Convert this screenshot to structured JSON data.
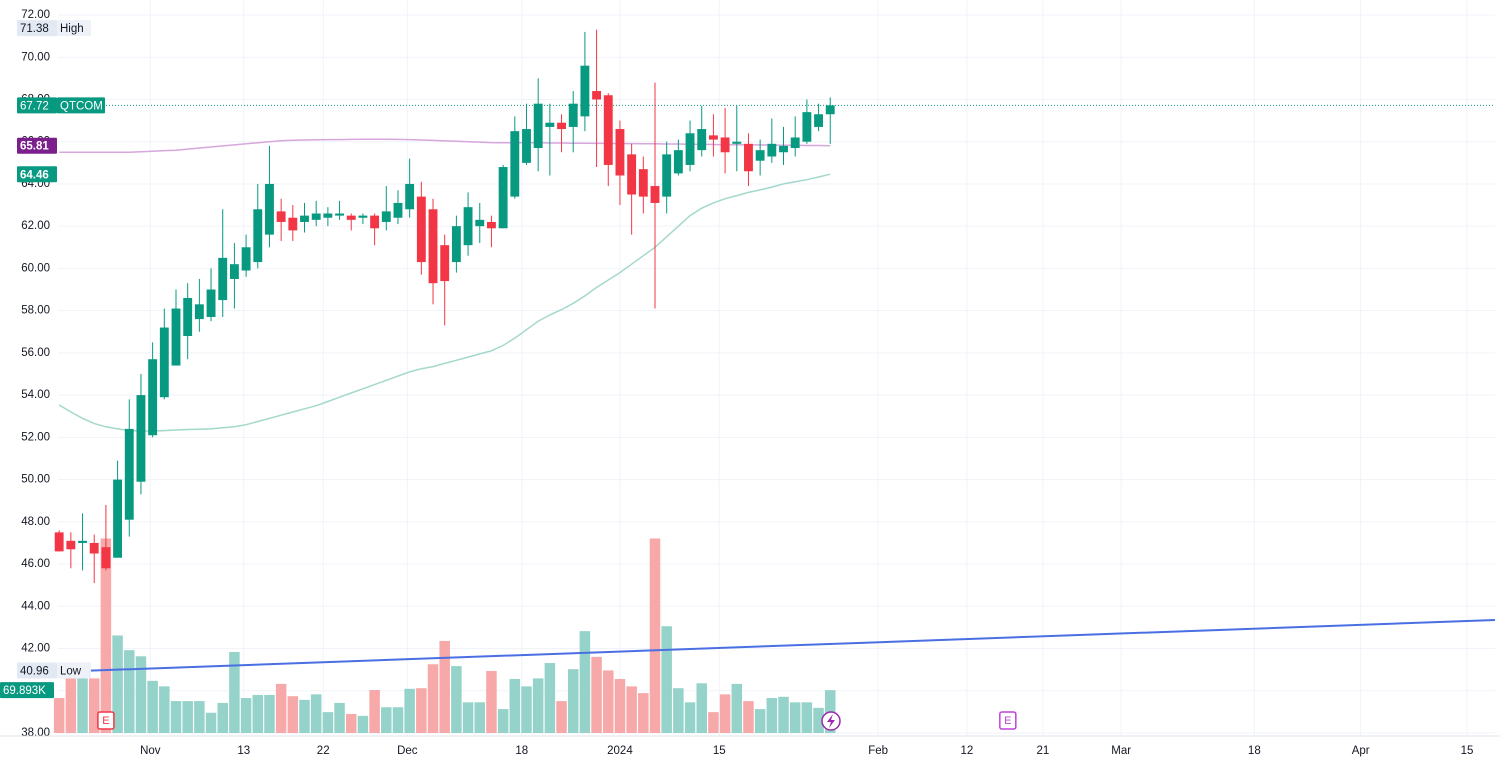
{
  "chart_data": {
    "type": "candlestick",
    "symbol": "QTCOM",
    "up_color": "#089981",
    "down_color": "#f23645",
    "x": [
      0,
      1,
      2,
      3,
      4,
      5,
      6,
      7,
      8,
      9,
      10,
      11,
      12,
      13,
      14,
      15,
      16,
      17,
      18,
      19,
      20,
      21,
      22,
      23,
      24,
      25,
      26,
      27,
      28,
      29,
      30,
      31,
      32,
      33,
      34,
      35,
      36,
      37,
      38,
      39,
      40,
      41,
      42,
      43,
      44,
      45,
      46,
      47,
      48,
      49,
      50,
      51,
      52,
      53,
      54,
      55,
      56,
      57,
      58,
      59,
      60,
      61,
      62,
      63,
      64,
      65,
      66
    ],
    "open": [
      47.5,
      47.1,
      47.0,
      47.0,
      46.8,
      46.3,
      48.1,
      49.9,
      52.1,
      53.9,
      55.4,
      56.8,
      57.6,
      57.7,
      58.5,
      59.5,
      59.9,
      60.3,
      61.6,
      62.7,
      62.4,
      62.2,
      62.3,
      62.4,
      62.5,
      62.5,
      62.4,
      62.5,
      62.2,
      62.4,
      62.8,
      63.4,
      62.8,
      61.1,
      60.3,
      61.1,
      62.0,
      62.2,
      61.9,
      63.4,
      65.0,
      65.7,
      66.7,
      66.9,
      66.7,
      67.2,
      68.4,
      68.2,
      66.6,
      65.4,
      64.7,
      63.9,
      63.4,
      64.5,
      64.9,
      65.6,
      66.3,
      66.2,
      65.9,
      65.9,
      65.1,
      65.3,
      65.5,
      65.7,
      66.0,
      66.7,
      67.3
    ],
    "high": [
      47.6,
      47.5,
      48.4,
      47.4,
      48.8,
      50.9,
      53.8,
      55.0,
      56.5,
      58.1,
      59.0,
      59.3,
      59.5,
      60.0,
      62.8,
      61.2,
      61.6,
      64.0,
      65.8,
      63.3,
      63.0,
      63.1,
      63.2,
      62.9,
      63.2,
      62.6,
      62.6,
      62.6,
      63.9,
      63.7,
      65.2,
      64.1,
      63.3,
      61.6,
      62.5,
      63.6,
      63.1,
      62.5,
      64.9,
      67.2,
      67.8,
      69.0,
      67.8,
      67.3,
      68.4,
      71.2,
      71.3,
      68.3,
      67.0,
      65.9,
      65.3,
      68.8,
      66.0,
      66.1,
      67.0,
      67.7,
      67.3,
      67.6,
      67.7,
      66.4,
      66.1,
      67.1,
      66.7,
      67.2,
      68.0,
      67.8,
      68.1
    ],
    "low": [
      46.6,
      45.8,
      45.7,
      45.1,
      45.7,
      46.3,
      47.3,
      49.3,
      52.0,
      53.8,
      55.4,
      55.7,
      57.0,
      57.5,
      57.7,
      58.1,
      59.6,
      60.0,
      61.0,
      61.3,
      61.3,
      61.7,
      62.0,
      62.0,
      62.3,
      61.8,
      62.1,
      61.1,
      61.8,
      62.1,
      62.4,
      59.7,
      58.3,
      57.3,
      59.8,
      60.6,
      61.2,
      61.0,
      61.9,
      63.3,
      64.9,
      64.6,
      64.4,
      65.5,
      65.5,
      66.5,
      64.8,
      63.9,
      63.0,
      61.6,
      62.6,
      58.1,
      62.6,
      64.4,
      64.6,
      65.3,
      65.3,
      64.5,
      64.6,
      63.9,
      64.4,
      65.0,
      64.9,
      65.3,
      65.9,
      66.5,
      65.9
    ],
    "close": [
      46.6,
      46.7,
      47.1,
      46.5,
      45.8,
      50.0,
      52.4,
      54.0,
      55.7,
      57.2,
      58.1,
      58.6,
      58.3,
      59.0,
      60.5,
      60.2,
      61.0,
      62.8,
      64.0,
      62.2,
      61.8,
      62.5,
      62.6,
      62.6,
      62.6,
      62.3,
      62.5,
      61.9,
      62.7,
      63.1,
      64.0,
      60.3,
      59.3,
      59.4,
      62.0,
      62.9,
      62.3,
      61.9,
      64.8,
      66.5,
      66.6,
      67.8,
      66.9,
      66.6,
      67.8,
      69.6,
      68.0,
      64.9,
      64.4,
      63.5,
      63.4,
      63.1,
      65.4,
      65.6,
      66.4,
      66.6,
      66.1,
      65.5,
      66.0,
      64.6,
      65.6,
      65.9,
      65.8,
      66.2,
      67.4,
      67.3,
      67.72
    ],
    "volume": {
      "up_color": "#95d3ca",
      "down_color": "#f7a8a8",
      "values": [
        57000,
        89000,
        89000,
        89000,
        317000,
        159000,
        135000,
        125000,
        85000,
        76000,
        52000,
        52000,
        52000,
        33000,
        49000,
        132000,
        57000,
        62000,
        62000,
        80000,
        60000,
        54000,
        63000,
        34000,
        49000,
        31000,
        28000,
        70000,
        42000,
        42000,
        72000,
        73000,
        112000,
        150000,
        109000,
        50000,
        50000,
        101000,
        39000,
        88000,
        76000,
        89000,
        114000,
        52000,
        104000,
        166000,
        124000,
        102000,
        88000,
        76000,
        65000,
        317000,
        174000,
        73000,
        50000,
        81000,
        34000,
        63000,
        80000,
        52000,
        39000,
        57000,
        59000,
        50000,
        50000,
        41000,
        69893
      ],
      "value_labels": [
        null,
        null,
        null,
        null,
        null,
        null,
        null,
        null,
        null,
        null,
        null,
        null,
        null,
        null,
        null,
        null,
        null,
        null,
        null,
        null,
        null,
        null,
        null,
        null,
        null,
        null,
        null,
        null,
        null,
        null,
        null,
        null,
        null,
        null,
        null,
        null,
        null,
        null,
        null,
        null,
        null,
        null,
        null,
        null,
        null,
        null,
        null,
        null,
        null,
        null,
        null,
        null,
        null,
        null,
        null,
        null,
        null,
        null,
        null,
        null,
        null,
        null,
        null,
        null,
        null,
        null,
        "69.893K"
      ],
      "label_color": "#089981"
    },
    "series": [
      {
        "color": "#d7a6dc",
        "label_color": "#7b1f8c",
        "values": [
          65.5,
          65.5,
          65.5,
          65.5,
          65.5,
          65.5,
          65.5,
          65.52,
          65.55,
          65.58,
          65.6,
          65.65,
          65.7,
          65.75,
          65.8,
          65.85,
          65.9,
          65.95,
          66.0,
          66.05,
          66.07,
          66.08,
          66.09,
          66.1,
          66.1,
          66.11,
          66.12,
          66.12,
          66.12,
          66.11,
          66.1,
          66.08,
          66.06,
          66.04,
          66.02,
          66.0,
          65.98,
          65.96,
          65.95,
          65.95,
          65.95,
          65.95,
          65.94,
          65.94,
          65.93,
          65.93,
          65.92,
          65.92,
          65.91,
          65.91,
          65.9,
          65.9,
          65.89,
          65.89,
          65.88,
          65.88,
          65.87,
          65.86,
          65.86,
          65.85,
          65.85,
          65.84,
          65.83,
          65.83,
          65.82,
          65.82,
          65.81
        ]
      },
      {
        "color": "#a3d8cb",
        "label_color": "#089981",
        "values": [
          53.53,
          53.2,
          52.9,
          52.65,
          52.5,
          52.4,
          52.32,
          52.3,
          52.3,
          52.32,
          52.35,
          52.37,
          52.38,
          52.4,
          52.45,
          52.5,
          52.6,
          52.75,
          52.9,
          53.05,
          53.2,
          53.35,
          53.5,
          53.7,
          53.9,
          54.1,
          54.3,
          54.5,
          54.7,
          54.9,
          55.1,
          55.25,
          55.35,
          55.5,
          55.65,
          55.8,
          55.95,
          56.1,
          56.35,
          56.7,
          57.1,
          57.5,
          57.8,
          58.05,
          58.35,
          58.7,
          59.1,
          59.45,
          59.8,
          60.2,
          60.6,
          61.0,
          61.5,
          62.0,
          62.5,
          62.85,
          63.1,
          63.3,
          63.45,
          63.6,
          63.72,
          63.85,
          64.0,
          64.1,
          64.2,
          64.33,
          64.46
        ]
      }
    ],
    "trendline": {
      "color": "#4a6fe3",
      "x": [
        0,
        122.9
      ],
      "values": [
        40.9,
        43.35
      ]
    },
    "annotations": [
      {
        "value": 71.38,
        "label": "High"
      },
      {
        "value": 40.96,
        "label": "Low"
      }
    ],
    "events": [
      {
        "x": 4,
        "label": "E",
        "color": "#f23645"
      },
      {
        "x": 81.2,
        "label": "E",
        "color": "#c142d8"
      }
    ],
    "xlim": [
      -0.1,
      122.9
    ],
    "xticks": [
      {
        "value": 7.8,
        "label": "Nov"
      },
      {
        "value": 15.8,
        "label": "13"
      },
      {
        "value": 22.6,
        "label": "22"
      },
      {
        "value": 29.8,
        "label": "Dec"
      },
      {
        "value": 39.6,
        "label": "18"
      },
      {
        "value": 48.0,
        "label": "2024"
      },
      {
        "value": 56.5,
        "label": "15"
      },
      {
        "value": 70.1,
        "label": "Feb"
      },
      {
        "value": 77.7,
        "label": "12"
      },
      {
        "value": 84.2,
        "label": "21"
      },
      {
        "value": 90.9,
        "label": "Mar"
      },
      {
        "value": 102.3,
        "label": "18"
      },
      {
        "value": 111.4,
        "label": "Apr"
      },
      {
        "value": 120.5,
        "label": "15"
      }
    ],
    "ylim": [
      38,
      72
    ],
    "yticks": [
      {
        "value": 72,
        "label": "72.00"
      },
      {
        "value": 70,
        "label": "70.00"
      },
      {
        "value": 68,
        "label": "68.00"
      },
      {
        "value": 66,
        "label": "66.00"
      },
      {
        "value": 64,
        "label": "64.00"
      },
      {
        "value": 62,
        "label": "62.00"
      },
      {
        "value": 60,
        "label": "60.00"
      },
      {
        "value": 58,
        "label": "58.00"
      },
      {
        "value": 56,
        "label": "56.00"
      },
      {
        "value": 54,
        "label": "54.00"
      },
      {
        "value": 52,
        "label": "52.00"
      },
      {
        "value": 50,
        "label": "50.00"
      },
      {
        "value": 48,
        "label": "48.00"
      },
      {
        "value": 46,
        "label": "46.00"
      },
      {
        "value": 44,
        "label": "44.00"
      },
      {
        "value": 42,
        "label": "42.00"
      },
      {
        "value": 40,
        "label": "40.00"
      },
      {
        "value": 38,
        "label": "38.00"
      }
    ],
    "y2lim": [
      0,
      1170000
    ],
    "grid": true
  }
}
